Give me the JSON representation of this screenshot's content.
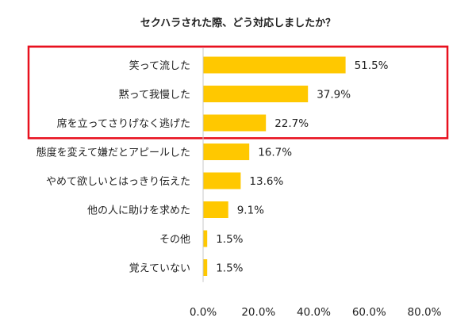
{
  "chart_data": {
    "type": "bar",
    "orientation": "horizontal",
    "title": "セクハラされた際、どう対応しましたか？",
    "categories": [
      "笑って流した",
      "黙って我慢した",
      "席を立ってさりげなく逃げた",
      "態度を変えて嫌だとアピールした",
      "やめて欲しいとはっきり伝えた",
      "他の人に助けを求めた",
      "その他",
      "覚えていない"
    ],
    "values": [
      51.5,
      37.9,
      22.7,
      16.7,
      13.6,
      9.1,
      1.5,
      1.5
    ],
    "value_labels": [
      "51.5%",
      "37.9%",
      "22.7%",
      "16.7%",
      "13.6%",
      "9.1%",
      "1.5%",
      "1.5%"
    ],
    "xlim": [
      0,
      80
    ],
    "x_ticks": [
      0,
      20,
      40,
      60,
      80
    ],
    "x_tick_labels": [
      "0.0%",
      "20.0%",
      "40.0%",
      "60.0%",
      "80.0%"
    ],
    "grid": false,
    "bar_color": "#FFC800",
    "highlight": {
      "first_index": 0,
      "last_index": 2,
      "color": "#E8101E"
    }
  }
}
